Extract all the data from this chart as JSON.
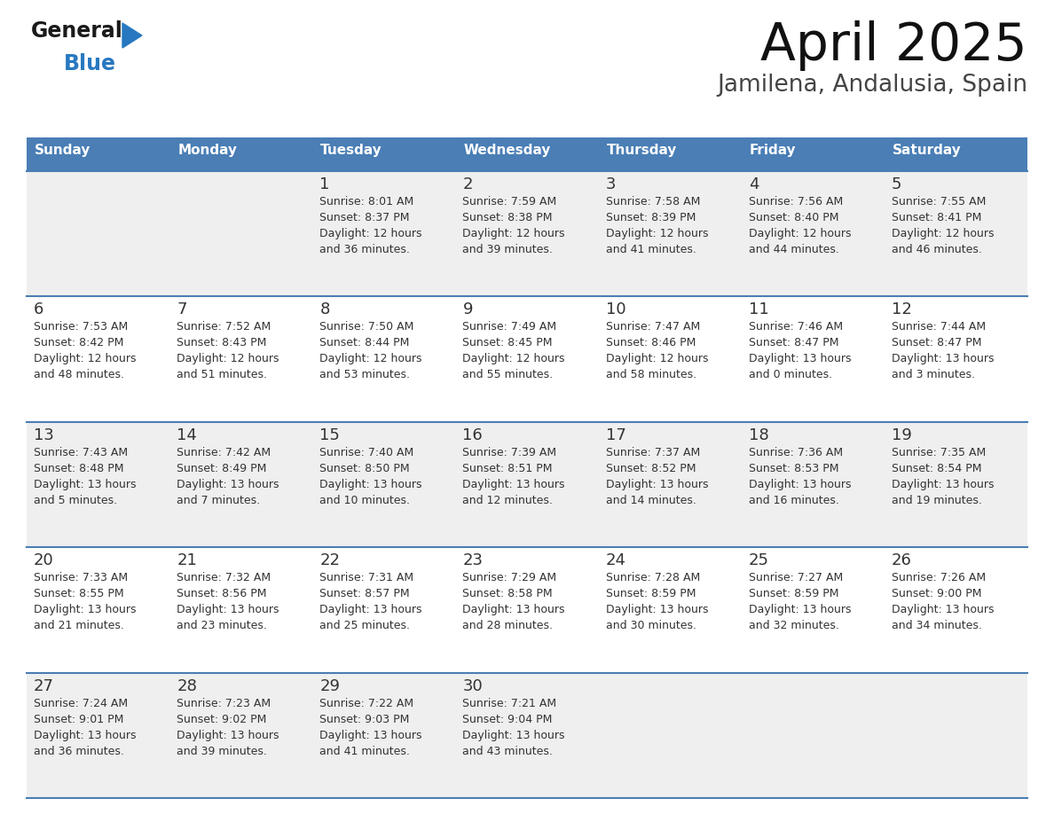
{
  "title": "April 2025",
  "subtitle": "Jamilena, Andalusia, Spain",
  "header_bg": "#4a7eb5",
  "header_text_color": "#ffffff",
  "cell_bg_odd": "#efefef",
  "cell_bg_even": "#ffffff",
  "text_color": "#333333",
  "line_color": "#4a7eb5",
  "days_of_week": [
    "Sunday",
    "Monday",
    "Tuesday",
    "Wednesday",
    "Thursday",
    "Friday",
    "Saturday"
  ],
  "logo_general_color": "#1a1a1a",
  "logo_blue_color": "#2878c0",
  "calendar": [
    [
      {
        "day": "",
        "lines": []
      },
      {
        "day": "",
        "lines": []
      },
      {
        "day": "1",
        "lines": [
          "Sunrise: 8:01 AM",
          "Sunset: 8:37 PM",
          "Daylight: 12 hours",
          "and 36 minutes."
        ]
      },
      {
        "day": "2",
        "lines": [
          "Sunrise: 7:59 AM",
          "Sunset: 8:38 PM",
          "Daylight: 12 hours",
          "and 39 minutes."
        ]
      },
      {
        "day": "3",
        "lines": [
          "Sunrise: 7:58 AM",
          "Sunset: 8:39 PM",
          "Daylight: 12 hours",
          "and 41 minutes."
        ]
      },
      {
        "day": "4",
        "lines": [
          "Sunrise: 7:56 AM",
          "Sunset: 8:40 PM",
          "Daylight: 12 hours",
          "and 44 minutes."
        ]
      },
      {
        "day": "5",
        "lines": [
          "Sunrise: 7:55 AM",
          "Sunset: 8:41 PM",
          "Daylight: 12 hours",
          "and 46 minutes."
        ]
      }
    ],
    [
      {
        "day": "6",
        "lines": [
          "Sunrise: 7:53 AM",
          "Sunset: 8:42 PM",
          "Daylight: 12 hours",
          "and 48 minutes."
        ]
      },
      {
        "day": "7",
        "lines": [
          "Sunrise: 7:52 AM",
          "Sunset: 8:43 PM",
          "Daylight: 12 hours",
          "and 51 minutes."
        ]
      },
      {
        "day": "8",
        "lines": [
          "Sunrise: 7:50 AM",
          "Sunset: 8:44 PM",
          "Daylight: 12 hours",
          "and 53 minutes."
        ]
      },
      {
        "day": "9",
        "lines": [
          "Sunrise: 7:49 AM",
          "Sunset: 8:45 PM",
          "Daylight: 12 hours",
          "and 55 minutes."
        ]
      },
      {
        "day": "10",
        "lines": [
          "Sunrise: 7:47 AM",
          "Sunset: 8:46 PM",
          "Daylight: 12 hours",
          "and 58 minutes."
        ]
      },
      {
        "day": "11",
        "lines": [
          "Sunrise: 7:46 AM",
          "Sunset: 8:47 PM",
          "Daylight: 13 hours",
          "and 0 minutes."
        ]
      },
      {
        "day": "12",
        "lines": [
          "Sunrise: 7:44 AM",
          "Sunset: 8:47 PM",
          "Daylight: 13 hours",
          "and 3 minutes."
        ]
      }
    ],
    [
      {
        "day": "13",
        "lines": [
          "Sunrise: 7:43 AM",
          "Sunset: 8:48 PM",
          "Daylight: 13 hours",
          "and 5 minutes."
        ]
      },
      {
        "day": "14",
        "lines": [
          "Sunrise: 7:42 AM",
          "Sunset: 8:49 PM",
          "Daylight: 13 hours",
          "and 7 minutes."
        ]
      },
      {
        "day": "15",
        "lines": [
          "Sunrise: 7:40 AM",
          "Sunset: 8:50 PM",
          "Daylight: 13 hours",
          "and 10 minutes."
        ]
      },
      {
        "day": "16",
        "lines": [
          "Sunrise: 7:39 AM",
          "Sunset: 8:51 PM",
          "Daylight: 13 hours",
          "and 12 minutes."
        ]
      },
      {
        "day": "17",
        "lines": [
          "Sunrise: 7:37 AM",
          "Sunset: 8:52 PM",
          "Daylight: 13 hours",
          "and 14 minutes."
        ]
      },
      {
        "day": "18",
        "lines": [
          "Sunrise: 7:36 AM",
          "Sunset: 8:53 PM",
          "Daylight: 13 hours",
          "and 16 minutes."
        ]
      },
      {
        "day": "19",
        "lines": [
          "Sunrise: 7:35 AM",
          "Sunset: 8:54 PM",
          "Daylight: 13 hours",
          "and 19 minutes."
        ]
      }
    ],
    [
      {
        "day": "20",
        "lines": [
          "Sunrise: 7:33 AM",
          "Sunset: 8:55 PM",
          "Daylight: 13 hours",
          "and 21 minutes."
        ]
      },
      {
        "day": "21",
        "lines": [
          "Sunrise: 7:32 AM",
          "Sunset: 8:56 PM",
          "Daylight: 13 hours",
          "and 23 minutes."
        ]
      },
      {
        "day": "22",
        "lines": [
          "Sunrise: 7:31 AM",
          "Sunset: 8:57 PM",
          "Daylight: 13 hours",
          "and 25 minutes."
        ]
      },
      {
        "day": "23",
        "lines": [
          "Sunrise: 7:29 AM",
          "Sunset: 8:58 PM",
          "Daylight: 13 hours",
          "and 28 minutes."
        ]
      },
      {
        "day": "24",
        "lines": [
          "Sunrise: 7:28 AM",
          "Sunset: 8:59 PM",
          "Daylight: 13 hours",
          "and 30 minutes."
        ]
      },
      {
        "day": "25",
        "lines": [
          "Sunrise: 7:27 AM",
          "Sunset: 8:59 PM",
          "Daylight: 13 hours",
          "and 32 minutes."
        ]
      },
      {
        "day": "26",
        "lines": [
          "Sunrise: 7:26 AM",
          "Sunset: 9:00 PM",
          "Daylight: 13 hours",
          "and 34 minutes."
        ]
      }
    ],
    [
      {
        "day": "27",
        "lines": [
          "Sunrise: 7:24 AM",
          "Sunset: 9:01 PM",
          "Daylight: 13 hours",
          "and 36 minutes."
        ]
      },
      {
        "day": "28",
        "lines": [
          "Sunrise: 7:23 AM",
          "Sunset: 9:02 PM",
          "Daylight: 13 hours",
          "and 39 minutes."
        ]
      },
      {
        "day": "29",
        "lines": [
          "Sunrise: 7:22 AM",
          "Sunset: 9:03 PM",
          "Daylight: 13 hours",
          "and 41 minutes."
        ]
      },
      {
        "day": "30",
        "lines": [
          "Sunrise: 7:21 AM",
          "Sunset: 9:04 PM",
          "Daylight: 13 hours",
          "and 43 minutes."
        ]
      },
      {
        "day": "",
        "lines": []
      },
      {
        "day": "",
        "lines": []
      },
      {
        "day": "",
        "lines": []
      }
    ]
  ]
}
